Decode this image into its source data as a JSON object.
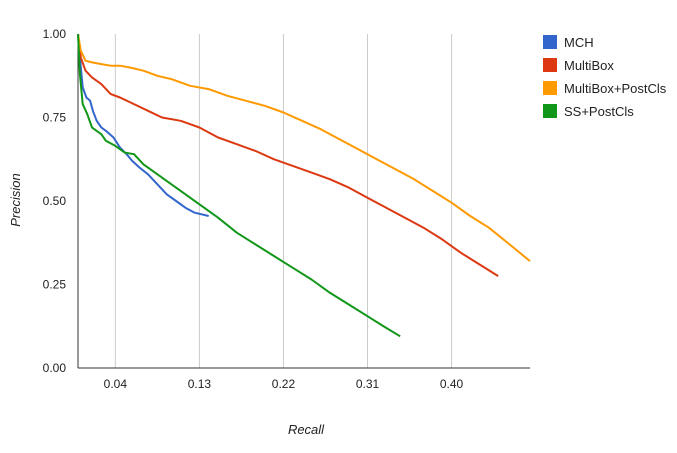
{
  "chart_data": {
    "type": "line",
    "title": "",
    "xlabel": "Recall",
    "ylabel": "Precision",
    "xlim": [
      0,
      0.484
    ],
    "ylim": [
      0,
      1.0
    ],
    "x_ticks": [
      0.04,
      0.13,
      0.22,
      0.31,
      0.4
    ],
    "x_tick_labels": [
      "0.04",
      "0.13",
      "0.22",
      "0.31",
      "0.40"
    ],
    "y_ticks": [
      0.0,
      0.25,
      0.5,
      0.75,
      1.0
    ],
    "y_tick_labels": [
      "0.00",
      "0.25",
      "0.50",
      "0.75",
      "1.00"
    ],
    "grid": "vertical",
    "legend_position": "right",
    "series": [
      {
        "name": "MCH",
        "color": "#3366cc",
        "points": [
          [
            0.0,
            1.0
          ],
          [
            0.002,
            0.93
          ],
          [
            0.005,
            0.84
          ],
          [
            0.009,
            0.81
          ],
          [
            0.013,
            0.8
          ],
          [
            0.016,
            0.77
          ],
          [
            0.02,
            0.74
          ],
          [
            0.025,
            0.72
          ],
          [
            0.03,
            0.71
          ],
          [
            0.038,
            0.69
          ],
          [
            0.045,
            0.66
          ],
          [
            0.052,
            0.64
          ],
          [
            0.058,
            0.62
          ],
          [
            0.066,
            0.6
          ],
          [
            0.075,
            0.58
          ],
          [
            0.085,
            0.55
          ],
          [
            0.095,
            0.52
          ],
          [
            0.105,
            0.5
          ],
          [
            0.115,
            0.48
          ],
          [
            0.125,
            0.465
          ],
          [
            0.14,
            0.455
          ]
        ]
      },
      {
        "name": "MultiBox",
        "color": "#dc3912",
        "points": [
          [
            0.0,
            1.0
          ],
          [
            0.003,
            0.93
          ],
          [
            0.008,
            0.89
          ],
          [
            0.015,
            0.87
          ],
          [
            0.025,
            0.85
          ],
          [
            0.035,
            0.82
          ],
          [
            0.045,
            0.81
          ],
          [
            0.06,
            0.79
          ],
          [
            0.075,
            0.77
          ],
          [
            0.09,
            0.75
          ],
          [
            0.11,
            0.74
          ],
          [
            0.13,
            0.72
          ],
          [
            0.15,
            0.69
          ],
          [
            0.17,
            0.67
          ],
          [
            0.19,
            0.65
          ],
          [
            0.21,
            0.625
          ],
          [
            0.23,
            0.605
          ],
          [
            0.25,
            0.585
          ],
          [
            0.27,
            0.565
          ],
          [
            0.29,
            0.54
          ],
          [
            0.31,
            0.51
          ],
          [
            0.33,
            0.48
          ],
          [
            0.35,
            0.45
          ],
          [
            0.37,
            0.42
          ],
          [
            0.39,
            0.385
          ],
          [
            0.41,
            0.345
          ],
          [
            0.43,
            0.31
          ],
          [
            0.45,
            0.275
          ]
        ]
      },
      {
        "name": "MultiBox+PostCls",
        "color": "#ff9900",
        "points": [
          [
            0.0,
            1.0
          ],
          [
            0.003,
            0.95
          ],
          [
            0.008,
            0.92
          ],
          [
            0.015,
            0.915
          ],
          [
            0.025,
            0.91
          ],
          [
            0.035,
            0.905
          ],
          [
            0.045,
            0.905
          ],
          [
            0.055,
            0.9
          ],
          [
            0.07,
            0.89
          ],
          [
            0.085,
            0.875
          ],
          [
            0.1,
            0.865
          ],
          [
            0.12,
            0.845
          ],
          [
            0.14,
            0.835
          ],
          [
            0.16,
            0.815
          ],
          [
            0.18,
            0.8
          ],
          [
            0.2,
            0.785
          ],
          [
            0.22,
            0.765
          ],
          [
            0.24,
            0.74
          ],
          [
            0.26,
            0.715
          ],
          [
            0.28,
            0.685
          ],
          [
            0.3,
            0.655
          ],
          [
            0.32,
            0.625
          ],
          [
            0.34,
            0.595
          ],
          [
            0.36,
            0.565
          ],
          [
            0.38,
            0.53
          ],
          [
            0.4,
            0.495
          ],
          [
            0.42,
            0.455
          ],
          [
            0.44,
            0.42
          ],
          [
            0.46,
            0.375
          ],
          [
            0.484,
            0.32
          ]
        ]
      },
      {
        "name": "SS+PostCls",
        "color": "#109618",
        "points": [
          [
            0.0,
            1.0
          ],
          [
            0.002,
            0.88
          ],
          [
            0.005,
            0.79
          ],
          [
            0.01,
            0.76
          ],
          [
            0.015,
            0.72
          ],
          [
            0.02,
            0.71
          ],
          [
            0.025,
            0.7
          ],
          [
            0.03,
            0.68
          ],
          [
            0.04,
            0.665
          ],
          [
            0.05,
            0.645
          ],
          [
            0.06,
            0.64
          ],
          [
            0.07,
            0.61
          ],
          [
            0.085,
            0.58
          ],
          [
            0.1,
            0.55
          ],
          [
            0.115,
            0.52
          ],
          [
            0.13,
            0.49
          ],
          [
            0.15,
            0.45
          ],
          [
            0.17,
            0.405
          ],
          [
            0.19,
            0.37
          ],
          [
            0.21,
            0.335
          ],
          [
            0.23,
            0.3
          ],
          [
            0.25,
            0.265
          ],
          [
            0.27,
            0.225
          ],
          [
            0.29,
            0.19
          ],
          [
            0.31,
            0.155
          ],
          [
            0.33,
            0.12
          ],
          [
            0.345,
            0.095
          ]
        ]
      }
    ]
  }
}
